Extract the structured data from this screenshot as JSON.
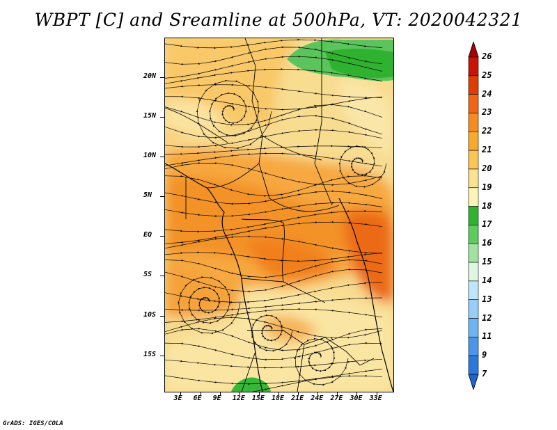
{
  "title": "WBPT [C] and Sreamline at 500hPa, VT: 2020042321",
  "credit": "GrADS: IGES/COLA",
  "map": {
    "y_ticks": [
      {
        "label": "20N",
        "lat": 20
      },
      {
        "label": "15N",
        "lat": 15
      },
      {
        "label": "10N",
        "lat": 10
      },
      {
        "label": "5N",
        "lat": 5
      },
      {
        "label": "EQ",
        "lat": 0
      },
      {
        "label": "5S",
        "lat": -5
      },
      {
        "label": "10S",
        "lat": -10
      },
      {
        "label": "15S",
        "lat": -15
      }
    ],
    "x_ticks": [
      {
        "label": "3E",
        "lon": 3
      },
      {
        "label": "6E",
        "lon": 6
      },
      {
        "label": "9E",
        "lon": 9
      },
      {
        "label": "12E",
        "lon": 12
      },
      {
        "label": "15E",
        "lon": 15
      },
      {
        "label": "18E",
        "lon": 18
      },
      {
        "label": "21E",
        "lon": 21
      },
      {
        "label": "24E",
        "lon": 24
      },
      {
        "label": "27E",
        "lon": 27
      },
      {
        "label": "30E",
        "lon": 30
      },
      {
        "label": "33E",
        "lon": 33
      }
    ]
  },
  "colorbar": {
    "labels": [
      "26",
      "25",
      "24",
      "23",
      "22",
      "21",
      "20",
      "19",
      "18",
      "17",
      "16",
      "15",
      "14",
      "13",
      "12",
      "11",
      "9",
      "7"
    ],
    "colors": [
      "#a80000",
      "#c81400",
      "#e13c00",
      "#f06414",
      "#f78c1e",
      "#faaa2a",
      "#fbc652",
      "#fae38e",
      "#fdf5b4",
      "#2fb22f",
      "#5ccc5c",
      "#9fe39f",
      "#dff7df",
      "#bfe6ff",
      "#96cdfb",
      "#6eb4f4",
      "#4a96eb",
      "#2a78dd",
      "#1e64cc"
    ]
  }
}
